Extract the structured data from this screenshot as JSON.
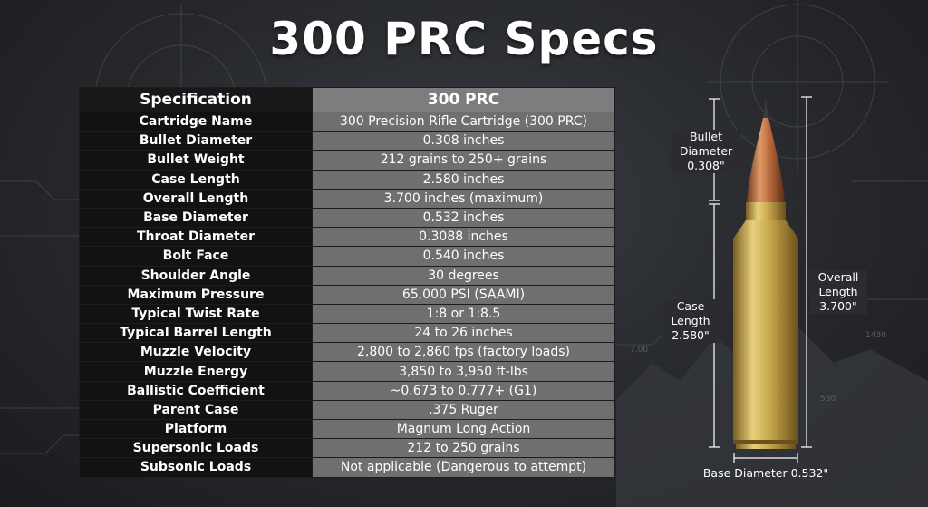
{
  "title": "300 PRC Specs",
  "table": {
    "headers": [
      "Specification",
      "300 PRC"
    ],
    "rows": [
      [
        "Cartridge Name",
        "300 Precision Rifle Cartridge (300 PRC)"
      ],
      [
        "Bullet Diameter",
        "0.308 inches"
      ],
      [
        "Bullet Weight",
        "212 grains to 250+ grains"
      ],
      [
        "Case Length",
        "2.580 inches"
      ],
      [
        "Overall Length",
        "3.700 inches (maximum)"
      ],
      [
        "Base Diameter",
        "0.532 inches"
      ],
      [
        "Throat Diameter",
        "0.3088 inches"
      ],
      [
        "Bolt Face",
        "0.540 inches"
      ],
      [
        "Shoulder Angle",
        "30 degrees"
      ],
      [
        "Maximum Pressure",
        "65,000 PSI (SAAMI)"
      ],
      [
        "Typical Twist Rate",
        "1:8 or 1:8.5"
      ],
      [
        "Typical Barrel Length",
        "24 to 26 inches"
      ],
      [
        "Muzzle Velocity",
        "2,800 to 2,860 fps (factory loads)"
      ],
      [
        "Muzzle Energy",
        "3,850 to 3,950 ft-lbs"
      ],
      [
        "Ballistic Coefficient",
        "~0.673 to 0.777+ (G1)"
      ],
      [
        "Parent Case",
        ".375 Ruger"
      ],
      [
        "Platform",
        "Magnum Long Action"
      ],
      [
        "Supersonic Loads",
        "212 to 250 grains"
      ],
      [
        "Subsonic Loads",
        "Not applicable (Dangerous to attempt)"
      ]
    ]
  },
  "diagram": {
    "bullet_diameter": [
      "Bullet",
      "Diameter",
      "0.308\""
    ],
    "case_length": [
      "Case",
      "Length",
      "2.580\""
    ],
    "overall_length": [
      "Overall",
      "Length",
      "3.700\""
    ],
    "base_diameter": "Base Diameter 0.532\""
  },
  "background": {
    "marks": [
      "7.00",
      "1430",
      "530"
    ]
  },
  "colors": {
    "background": "#26282c",
    "header_left": "#181818",
    "header_right": "#7d7d7d",
    "cell_left": "#121212",
    "cell_right": "#6f6f6f",
    "brass": "#c9a94e",
    "bullet_copper": "#b86a3c",
    "bullet_tip": "#3a3a3a"
  }
}
